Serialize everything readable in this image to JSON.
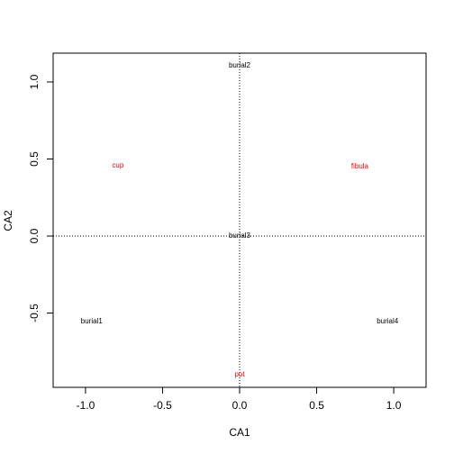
{
  "chart_data": {
    "type": "scatter",
    "xlabel": "CA1",
    "ylabel": "CA2",
    "xlim": [
      -1.21,
      1.21
    ],
    "ylim": [
      -0.982,
      1.187
    ],
    "xticks": [
      {
        "value": -1,
        "label": "-1.0"
      },
      -0.5,
      {
        "value": 0,
        "label": "0.0"
      },
      0.5,
      {
        "value": 1,
        "label": "1.0"
      }
    ],
    "yticks": [
      -0.5,
      {
        "value": 0,
        "label": "0.0"
      },
      0.5,
      {
        "value": 1,
        "label": "1.0"
      }
    ],
    "hline": 0,
    "vline": 0,
    "series": [
      {
        "color": "#000000",
        "labels": [
          "burial1",
          "burial2",
          "burial3",
          "burial4"
        ],
        "x": [
          -0.96,
          0,
          0,
          0.96
        ],
        "y": [
          -0.556,
          1.105,
          0,
          -0.556
        ]
      },
      {
        "color": "#ff0000",
        "labels": [
          "cup",
          "fibula",
          "pot"
        ],
        "x": [
          -0.79,
          0.78,
          0
        ],
        "y": [
          0.456,
          0.45,
          -0.9
        ]
      }
    ]
  }
}
